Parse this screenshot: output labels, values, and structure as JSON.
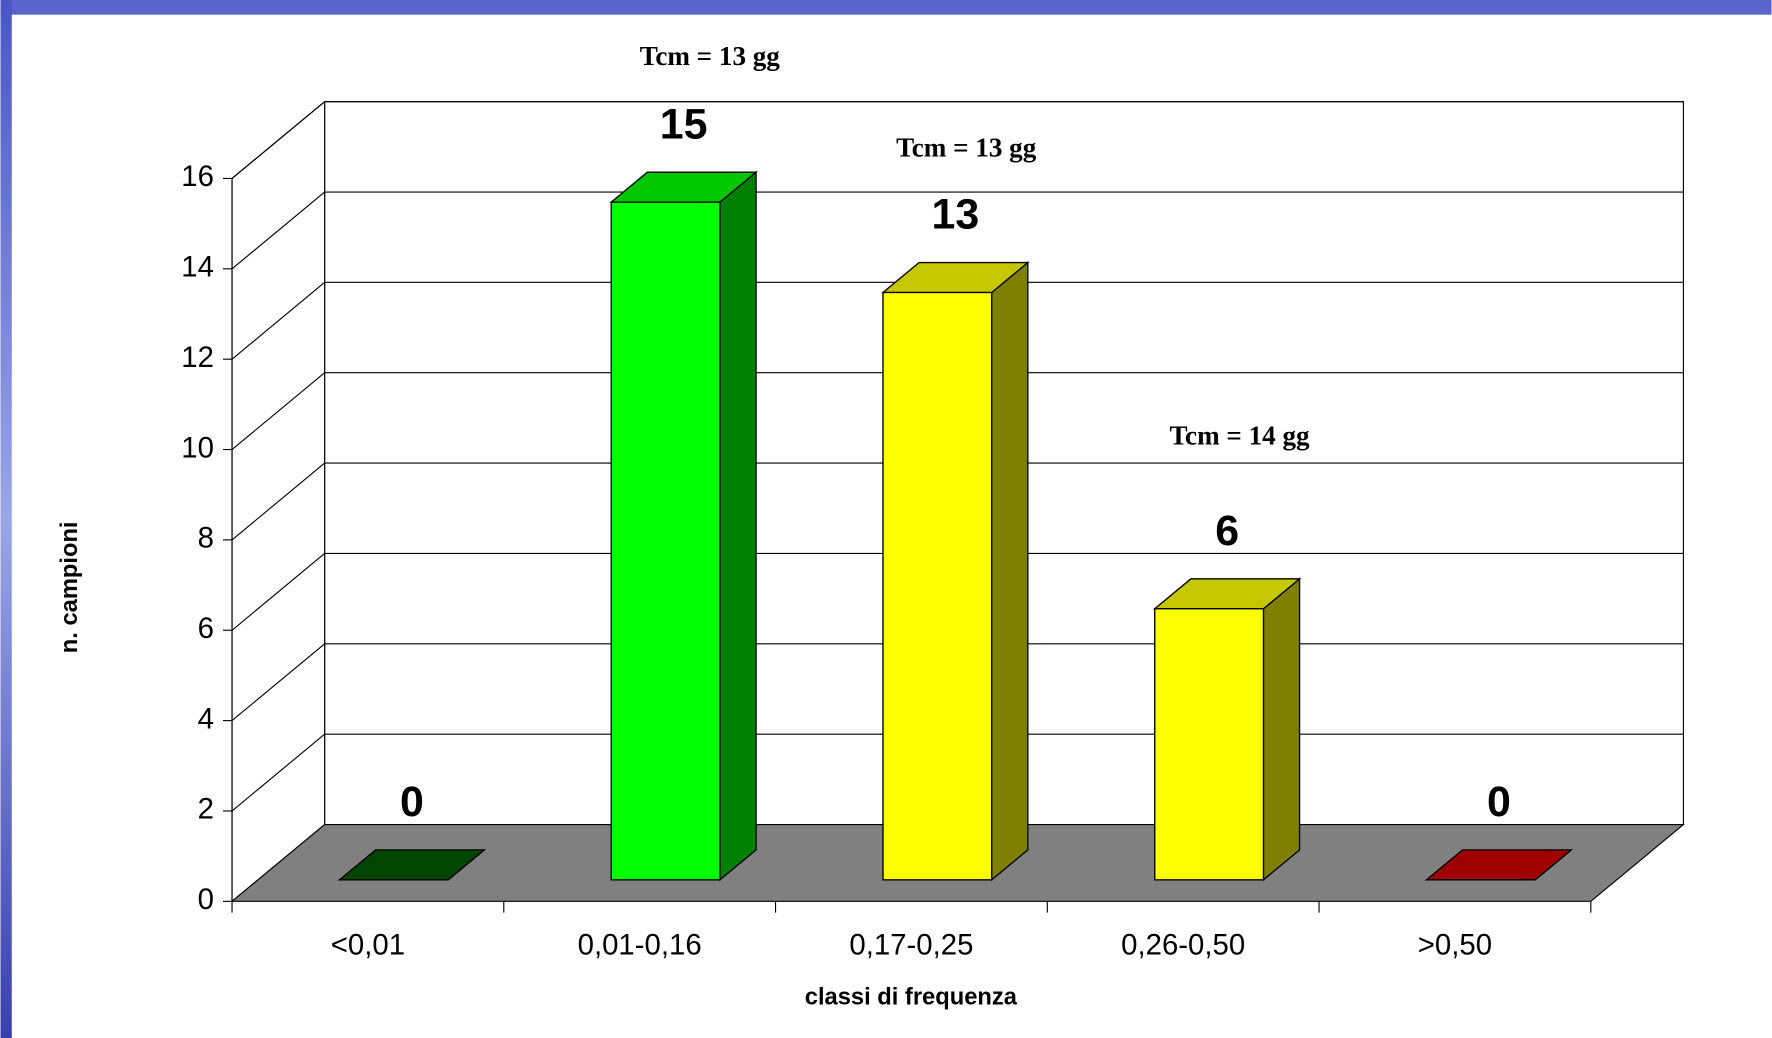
{
  "chart_data": {
    "type": "bar3d",
    "categories": [
      "<0,01",
      "0,01-0,16",
      "0,17-0,25",
      "0,26-0,50",
      ">0,50"
    ],
    "values": [
      0,
      15,
      13,
      6,
      0
    ],
    "colors": [
      "#005a00",
      "#00ff00",
      "#ffff00",
      "#ffff00",
      "#cc0000"
    ],
    "ylim": [
      0,
      16
    ],
    "yticks": [
      0,
      2,
      4,
      6,
      8,
      10,
      12,
      14,
      16
    ],
    "grid": true,
    "y_label": "n. campioni",
    "x_label": "classi di frequenza",
    "annotations": [
      "Tcm = 13 gg",
      "Tcm = 13 gg",
      "Tcm = 14 gg"
    ]
  }
}
